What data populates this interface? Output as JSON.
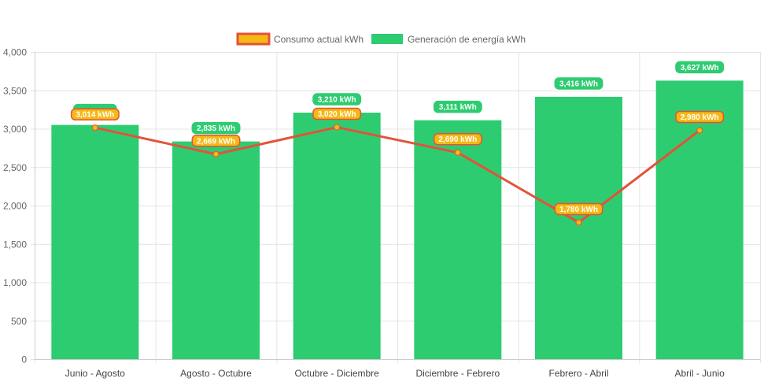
{
  "chart_data": {
    "type": "bar",
    "categories": [
      "Junio - Agosto",
      "Agosto - Octubre",
      "Octubre - Diciembre",
      "Diciembre - Febrero",
      "Febrero - Abril",
      "Abril - Junio"
    ],
    "series": [
      {
        "name": "Consumo actual kWh",
        "type": "line",
        "values": [
          3014,
          2669,
          3020,
          2690,
          1780,
          2980
        ],
        "labels": [
          "3,014 kWh",
          "2,669 kWh",
          "3,020 kWh",
          "2,690 kWh",
          "1,780 kWh",
          "2,980 kWh"
        ],
        "line_color": "#e2533a",
        "fill_color": "#f5b914"
      },
      {
        "name": "Generación de energía kWh",
        "type": "bar",
        "values": [
          3050,
          2835,
          3210,
          3111,
          3416,
          3627
        ],
        "labels": [
          "",
          "2,835 kWh",
          "3,210 kWh",
          "3,111 kWh",
          "3,416 kWh",
          "3,627 kWh"
        ],
        "color": "#2ecc71"
      }
    ],
    "ylim": [
      0,
      4000
    ],
    "yticks": [
      0,
      500,
      1000,
      1500,
      2000,
      2500,
      3000,
      3500,
      4000
    ],
    "ytick_labels": [
      "0",
      "500",
      "1,000",
      "1,500",
      "2,000",
      "2,500",
      "3,000",
      "3,500",
      "4,000"
    ],
    "grid": true,
    "legend_position": "top-center",
    "title": "",
    "xlabel": "",
    "ylabel": ""
  }
}
